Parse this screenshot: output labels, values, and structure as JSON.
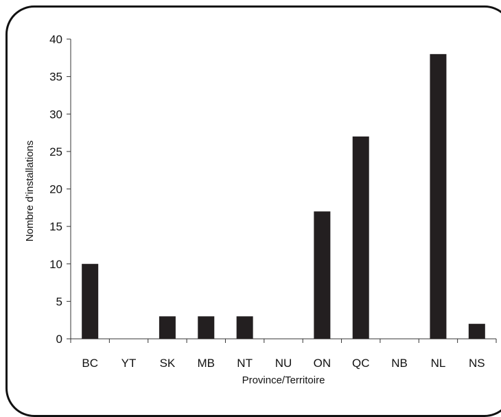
{
  "chart_data": {
    "type": "bar",
    "categories": [
      "BC",
      "YT",
      "SK",
      "MB",
      "NT",
      "NU",
      "ON",
      "QC",
      "NB",
      "NL",
      "NS"
    ],
    "values": [
      10,
      0,
      3,
      3,
      3,
      0,
      17,
      27,
      0,
      38,
      2
    ],
    "title": "",
    "xlabel": "Province/Territoire",
    "ylabel": "Nombre d’installations",
    "ylim": [
      0,
      40
    ],
    "yticks": [
      0,
      5,
      10,
      15,
      20,
      25,
      30,
      35,
      40
    ],
    "bar_color": "#231f20",
    "grid": false,
    "legend": "none"
  }
}
